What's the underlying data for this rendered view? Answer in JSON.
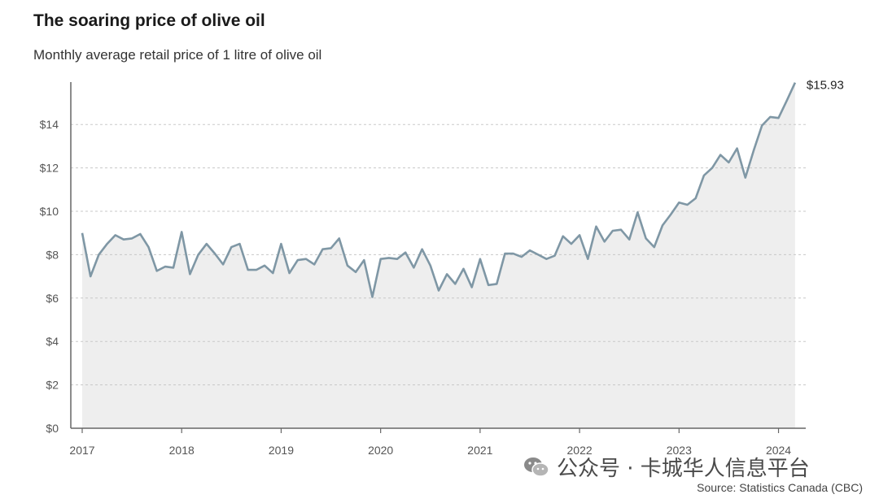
{
  "chart_data": {
    "type": "area",
    "title": "The soaring price of olive oil",
    "subtitle": "Monthly average retail price of 1 litre of olive oil",
    "xlabel": "",
    "ylabel": "",
    "ylim": [
      0,
      16
    ],
    "y_ticks": [
      0,
      2,
      4,
      6,
      8,
      10,
      12,
      14
    ],
    "y_tick_labels": [
      "$0",
      "$2",
      "$4",
      "$6",
      "$8",
      "$10",
      "$12",
      "$14"
    ],
    "x_ticks": [
      "2017",
      "2018",
      "2019",
      "2020",
      "2021",
      "2022",
      "2023",
      "2024"
    ],
    "start": "2017-01",
    "end_label": "$15.93",
    "series": [
      {
        "name": "Monthly average retail price of 1 litre of olive oil",
        "values": [
          9.0,
          7.0,
          8.0,
          8.5,
          8.9,
          8.7,
          8.75,
          8.95,
          8.35,
          7.25,
          7.45,
          7.4,
          9.05,
          7.1,
          8.0,
          8.5,
          8.05,
          7.55,
          8.35,
          8.5,
          7.3,
          7.3,
          7.5,
          7.15,
          8.5,
          7.15,
          7.75,
          7.8,
          7.55,
          8.25,
          8.3,
          8.75,
          7.5,
          7.2,
          7.75,
          6.05,
          7.8,
          7.85,
          7.8,
          8.1,
          7.4,
          8.25,
          7.5,
          6.35,
          7.1,
          6.65,
          7.35,
          6.5,
          7.8,
          6.6,
          6.65,
          8.05,
          8.05,
          7.9,
          8.2,
          8.0,
          7.8,
          7.95,
          8.85,
          8.5,
          8.9,
          7.8,
          9.3,
          8.6,
          9.1,
          9.15,
          8.7,
          9.95,
          8.75,
          8.35,
          9.35,
          9.85,
          10.4,
          10.3,
          10.6,
          11.65,
          12.0,
          12.6,
          12.25,
          12.9,
          11.55,
          12.8,
          13.95,
          14.35,
          14.3,
          15.1,
          15.93
        ]
      }
    ]
  },
  "watermark": {
    "text": "公众号 · 卡城华人信息平台",
    "icon": "wechat-icon"
  },
  "source": "Source: Statistics Canada (CBC)",
  "colors": {
    "line": "#7f97a5",
    "area": "#eeeeee",
    "grid": "#c8c8c8",
    "axis": "#666666"
  }
}
